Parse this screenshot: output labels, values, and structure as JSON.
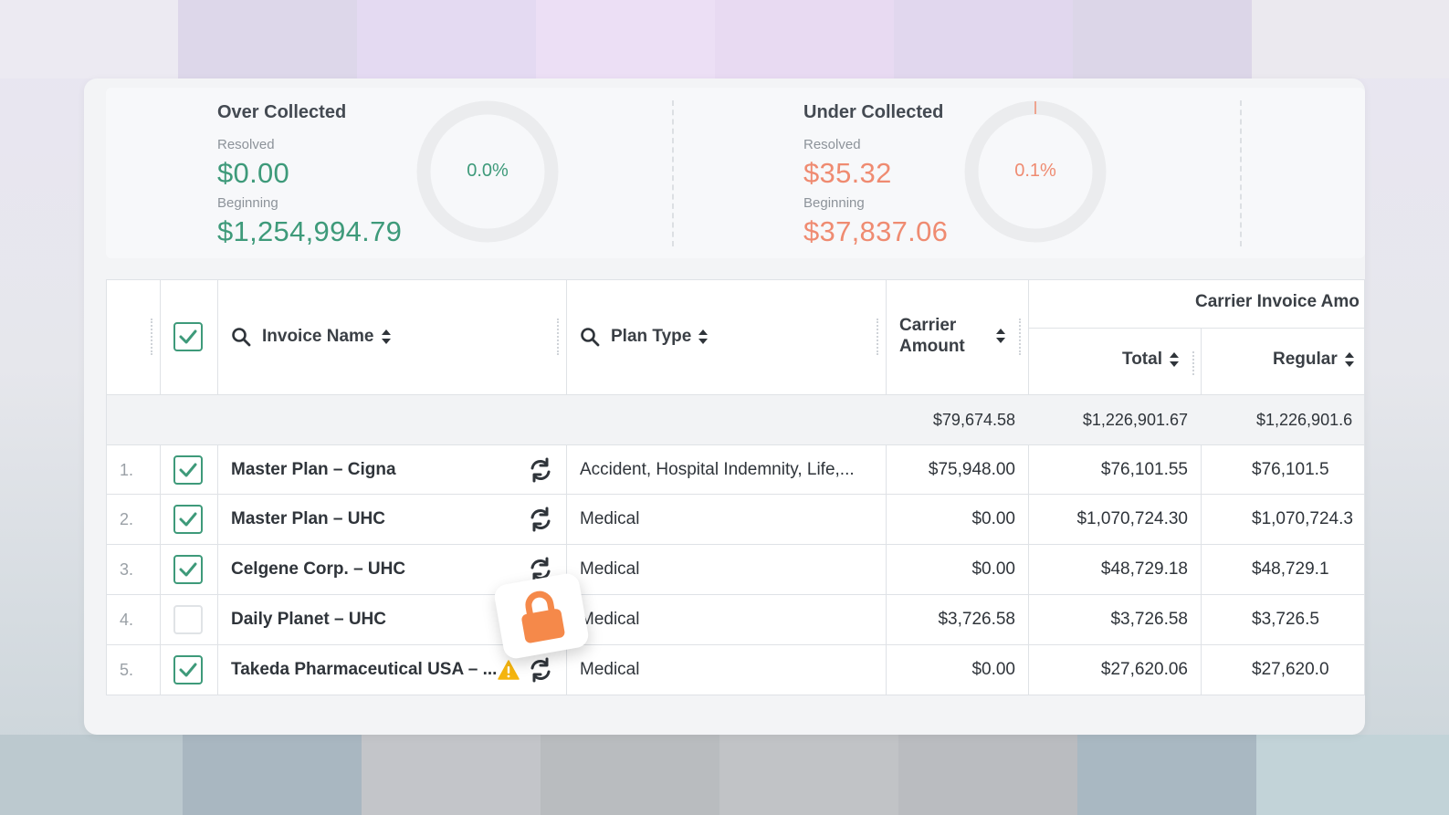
{
  "summary": {
    "over": {
      "title": "Over Collected",
      "resolved_label": "Resolved",
      "resolved_value": "$0.00",
      "beginning_label": "Beginning",
      "beginning_value": "$1,254,994.79",
      "percent": "0.0%",
      "color": "#3e9a7a"
    },
    "under": {
      "title": "Under Collected",
      "resolved_label": "Resolved",
      "resolved_value": "$35.32",
      "beginning_label": "Beginning",
      "beginning_value": "$37,837.06",
      "percent": "0.1%",
      "color": "#ef8b71"
    }
  },
  "table": {
    "headers": {
      "invoice_name": "Invoice Name",
      "plan_type": "Plan Type",
      "carrier_amount_line1": "Carrier",
      "carrier_amount_line2": "Amount",
      "carrier_invoice_group": "Carrier Invoice Amo",
      "total": "Total",
      "regular": "Regular"
    },
    "totals": {
      "carrier_amount": "$79,674.58",
      "total": "$1,226,901.67",
      "regular": "$1,226,901.6"
    },
    "rows": [
      {
        "num": "1.",
        "checked": true,
        "name": "Master Plan – Cigna",
        "plan": "Accident, Hospital Indemnity, Life,...",
        "carrier": "$75,948.00",
        "total": "$76,101.55",
        "regular": "$76,101.5"
      },
      {
        "num": "2.",
        "checked": true,
        "name": "Master Plan – UHC",
        "plan": "Medical",
        "carrier": "$0.00",
        "total": "$1,070,724.30",
        "regular": "$1,070,724.3"
      },
      {
        "num": "3.",
        "checked": true,
        "name": "Celgene Corp. – UHC",
        "plan": "Medical",
        "carrier": "$0.00",
        "total": "$48,729.18",
        "regular": "$48,729.1"
      },
      {
        "num": "4.",
        "checked": false,
        "name": "Daily Planet – UHC",
        "plan": "Medical",
        "carrier": "$3,726.58",
        "total": "$3,726.58",
        "regular": "$3,726.5"
      },
      {
        "num": "5.",
        "checked": true,
        "name": "Takeda Pharmaceutical USA – ...",
        "plan": "Medical",
        "carrier": "$0.00",
        "total": "$27,620.06",
        "regular": "$27,620.0"
      }
    ]
  },
  "icons": {
    "search": "search-icon",
    "sort": "sort-icon",
    "refresh": "refresh-icon",
    "warning": "warning-icon",
    "lock": "lock-icon"
  },
  "colors": {
    "accent_green": "#3e9a7a",
    "salmon": "#ef8b71",
    "lock_orange": "#f5894a",
    "warning_yellow": "#f5b50f"
  }
}
